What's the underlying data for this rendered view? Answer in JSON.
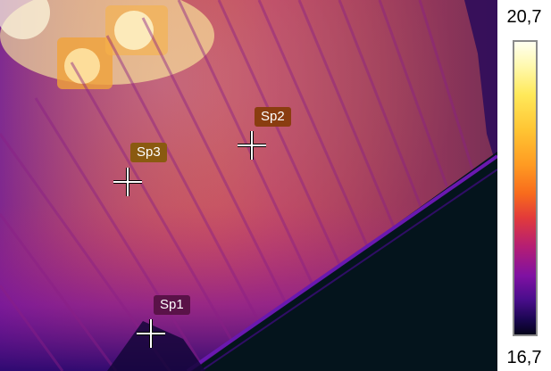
{
  "scale": {
    "max_label": "20,7",
    "min_label": "16,7",
    "colors": [
      "#fffff0",
      "#ffe95a",
      "#ff9b22",
      "#e23b3a",
      "#7f11a2",
      "#1a0650",
      "#05031a"
    ]
  },
  "spots": [
    {
      "id": "sp1",
      "label": "Sp1",
      "label_color": "#5a1248"
    },
    {
      "id": "sp2",
      "label": "Sp2",
      "label_color": "#8a3d10"
    },
    {
      "id": "sp3",
      "label": "Sp3",
      "label_color": "#8a5a10"
    }
  ],
  "icons": {
    "spot_marker": "crosshair-icon"
  }
}
